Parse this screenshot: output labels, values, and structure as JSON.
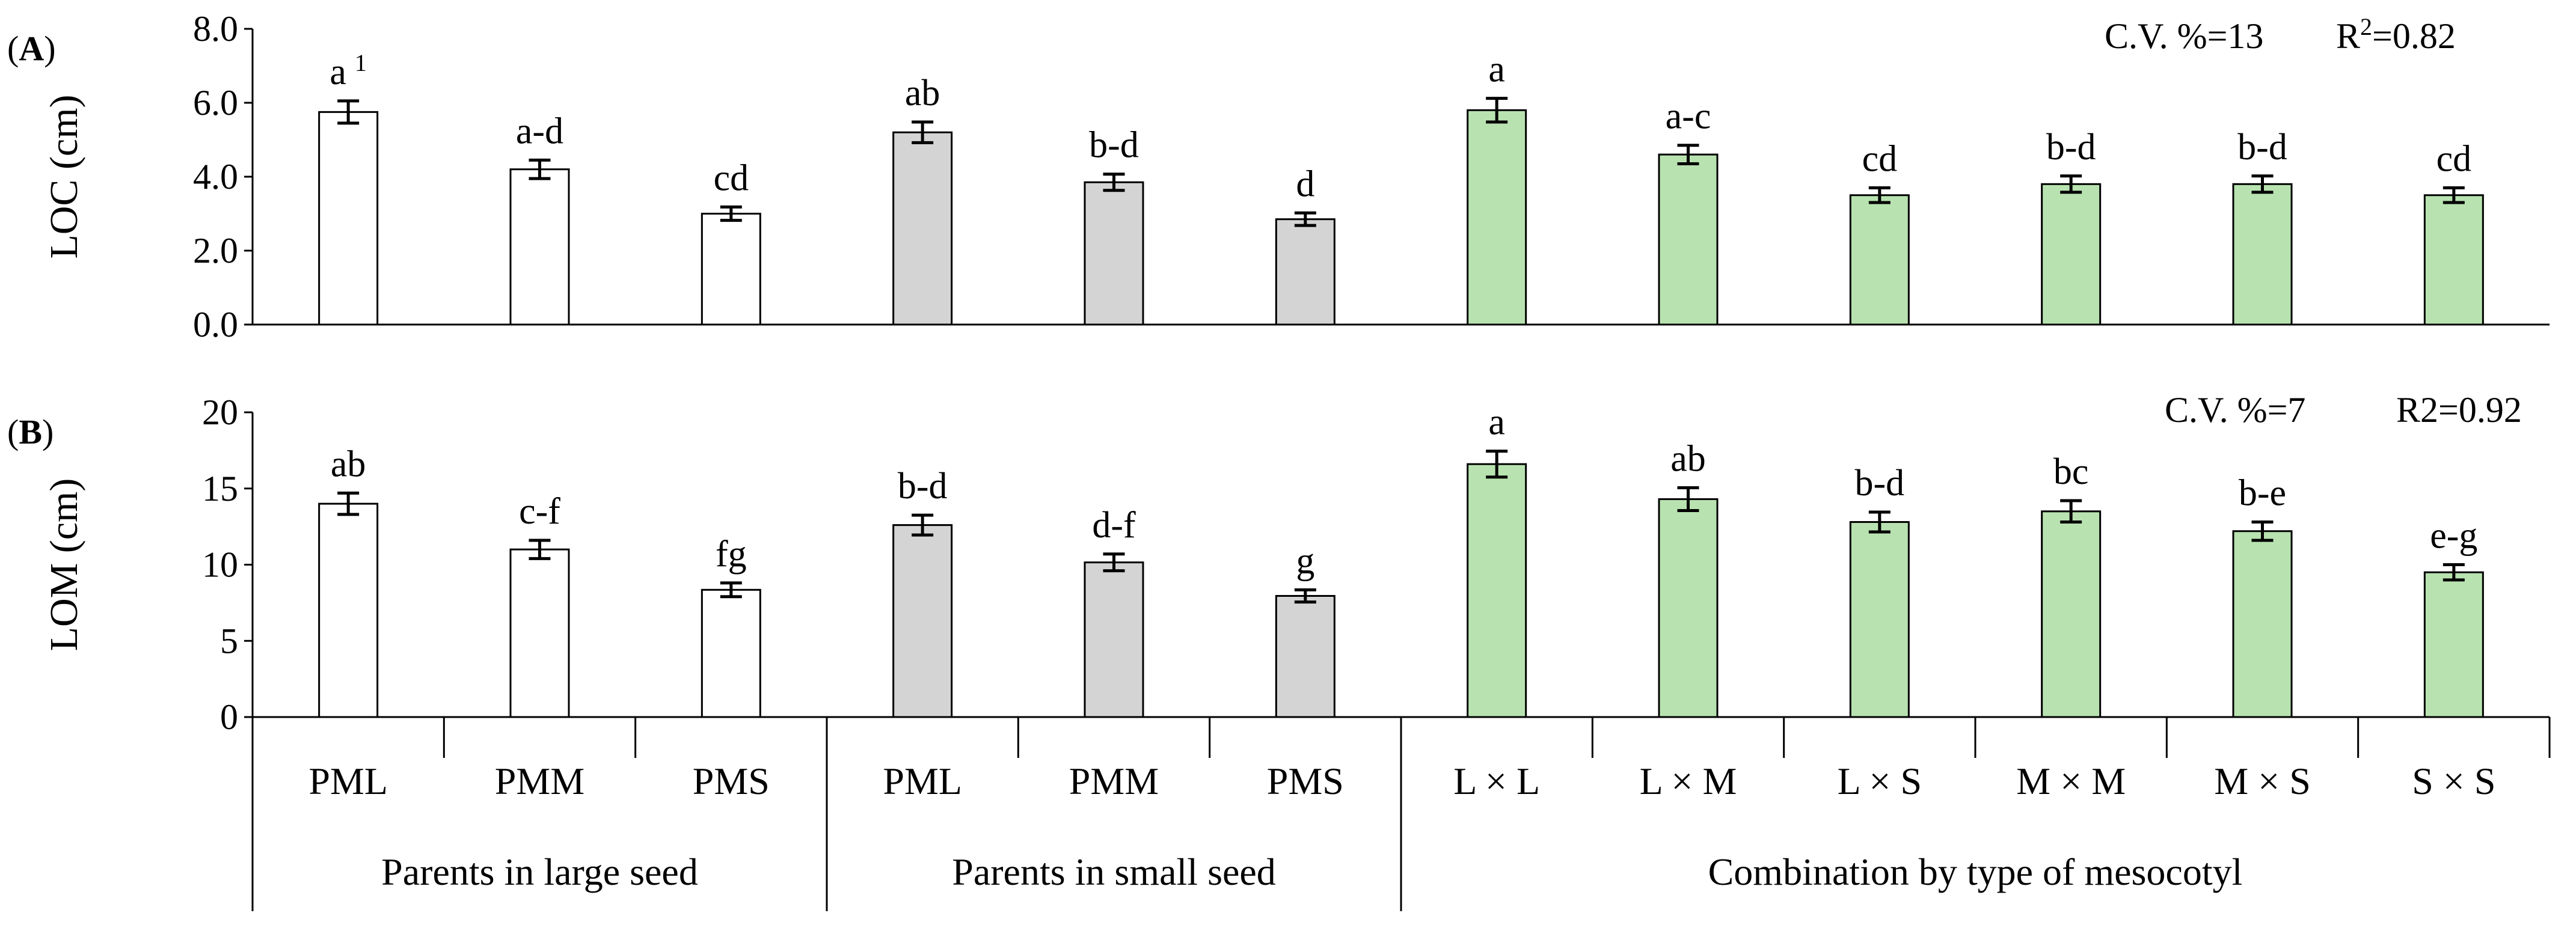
{
  "chart_data": [
    {
      "panel_id": "A",
      "type": "bar",
      "ylabel": "LOC (cm)",
      "ylim": [
        0,
        8
      ],
      "yticks": [
        {
          "value": 0,
          "label": "0.0"
        },
        {
          "value": 2,
          "label": "2.0"
        },
        {
          "value": 4,
          "label": "4.0"
        },
        {
          "value": 6,
          "label": "6.0"
        },
        {
          "value": 8,
          "label": "8.0"
        }
      ],
      "stats": {
        "cv": "C.V. %=13",
        "r2_base": "R",
        "r2_exp": "2",
        "r2_value": "=0.82"
      },
      "values": [
        5.75,
        4.2,
        3.0,
        5.2,
        3.85,
        2.85,
        5.8,
        4.6,
        3.5,
        3.8,
        3.8,
        3.5
      ],
      "errors": [
        0.3,
        0.25,
        0.18,
        0.28,
        0.22,
        0.17,
        0.32,
        0.25,
        0.2,
        0.22,
        0.22,
        0.2
      ],
      "letters": [
        "a",
        "a-d",
        "cd",
        "ab",
        "b-d",
        "d",
        "a",
        "a-c",
        "cd",
        "b-d",
        "b-d",
        "cd"
      ],
      "footnote_marker": "1"
    },
    {
      "panel_id": "B",
      "type": "bar",
      "ylabel": "LOM (cm)",
      "ylim": [
        0,
        20
      ],
      "yticks": [
        {
          "value": 0,
          "label": "0"
        },
        {
          "value": 5,
          "label": "5"
        },
        {
          "value": 10,
          "label": "10"
        },
        {
          "value": 15,
          "label": "15"
        },
        {
          "value": 20,
          "label": "20"
        }
      ],
      "stats": {
        "cv": "C.V. %=7",
        "r2_base": "R2=0.92",
        "r2_exp": "",
        "r2_value": ""
      },
      "values": [
        14.0,
        11.0,
        8.35,
        12.6,
        10.15,
        7.95,
        16.6,
        14.3,
        12.8,
        13.5,
        12.2,
        9.5
      ],
      "errors": [
        0.7,
        0.6,
        0.45,
        0.65,
        0.55,
        0.4,
        0.85,
        0.75,
        0.65,
        0.7,
        0.6,
        0.5
      ],
      "letters": [
        "ab",
        "c-f",
        "fg",
        "b-d",
        "d-f",
        "g",
        "a",
        "ab",
        "b-d",
        "bc",
        "b-e",
        "e-g"
      ],
      "footnote_marker": ""
    }
  ],
  "categories": [
    "PML",
    "PMM",
    "PMS",
    "PML",
    "PMM",
    "PMS",
    "L × L",
    "L × M",
    "L × S",
    "M × M",
    "M × S",
    "S × S"
  ],
  "groups": [
    {
      "label": "Parents in large seed",
      "start": 0,
      "end": 2
    },
    {
      "label": "Parents in small seed",
      "start": 3,
      "end": 5
    },
    {
      "label": "Combination by type of mesocotyl",
      "start": 6,
      "end": 11
    }
  ],
  "colors": {
    "bars": [
      "#ffffff",
      "#ffffff",
      "#ffffff",
      "#d4d4d4",
      "#d4d4d4",
      "#d4d4d4",
      "#b8e3b0",
      "#b8e3b0",
      "#b8e3b0",
      "#b8e3b0",
      "#b8e3b0",
      "#b8e3b0"
    ],
    "stroke": "#000000"
  }
}
